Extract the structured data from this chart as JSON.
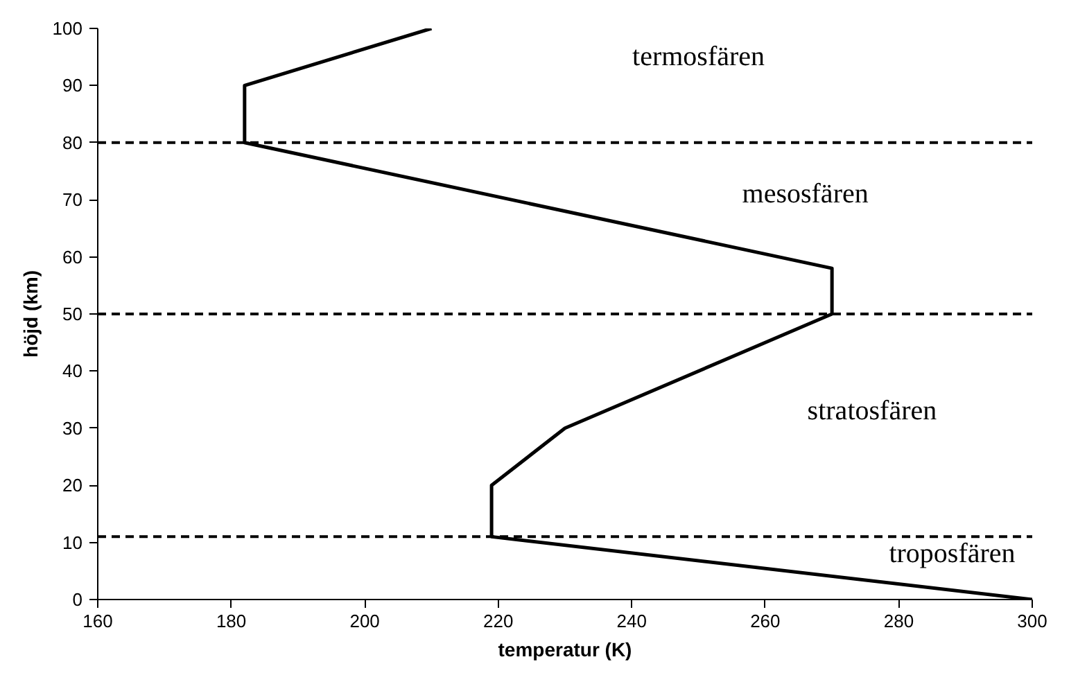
{
  "chart_data": {
    "type": "line",
    "xlabel": "temperatur (K)",
    "ylabel": "höjd (km)",
    "x": [
      300,
      219,
      219,
      230,
      270,
      270,
      182,
      182,
      210
    ],
    "series": [
      {
        "color": "#000000",
        "values": [
          0,
          11,
          20,
          30,
          50,
          58,
          80,
          90,
          100
        ]
      }
    ],
    "xlim": [
      160,
      300
    ],
    "xticks": [
      160,
      180,
      200,
      220,
      240,
      260,
      280,
      300
    ],
    "ylim": [
      0,
      100
    ],
    "yticks": [
      0,
      10,
      20,
      30,
      40,
      50,
      60,
      70,
      80,
      90,
      100
    ],
    "ref_lines": [
      {
        "axis": "y",
        "value": 11,
        "line_style": "dashed",
        "color": "#000000"
      },
      {
        "axis": "y",
        "value": 50,
        "line_style": "dashed",
        "color": "#000000"
      },
      {
        "axis": "y",
        "value": 80,
        "line_style": "dashed",
        "color": "#000000"
      }
    ],
    "annotations": [
      "termosfären",
      "mesosfären",
      "stratosfären",
      "troposfären"
    ],
    "grid": false,
    "marker": "none",
    "line_style": "solid"
  }
}
